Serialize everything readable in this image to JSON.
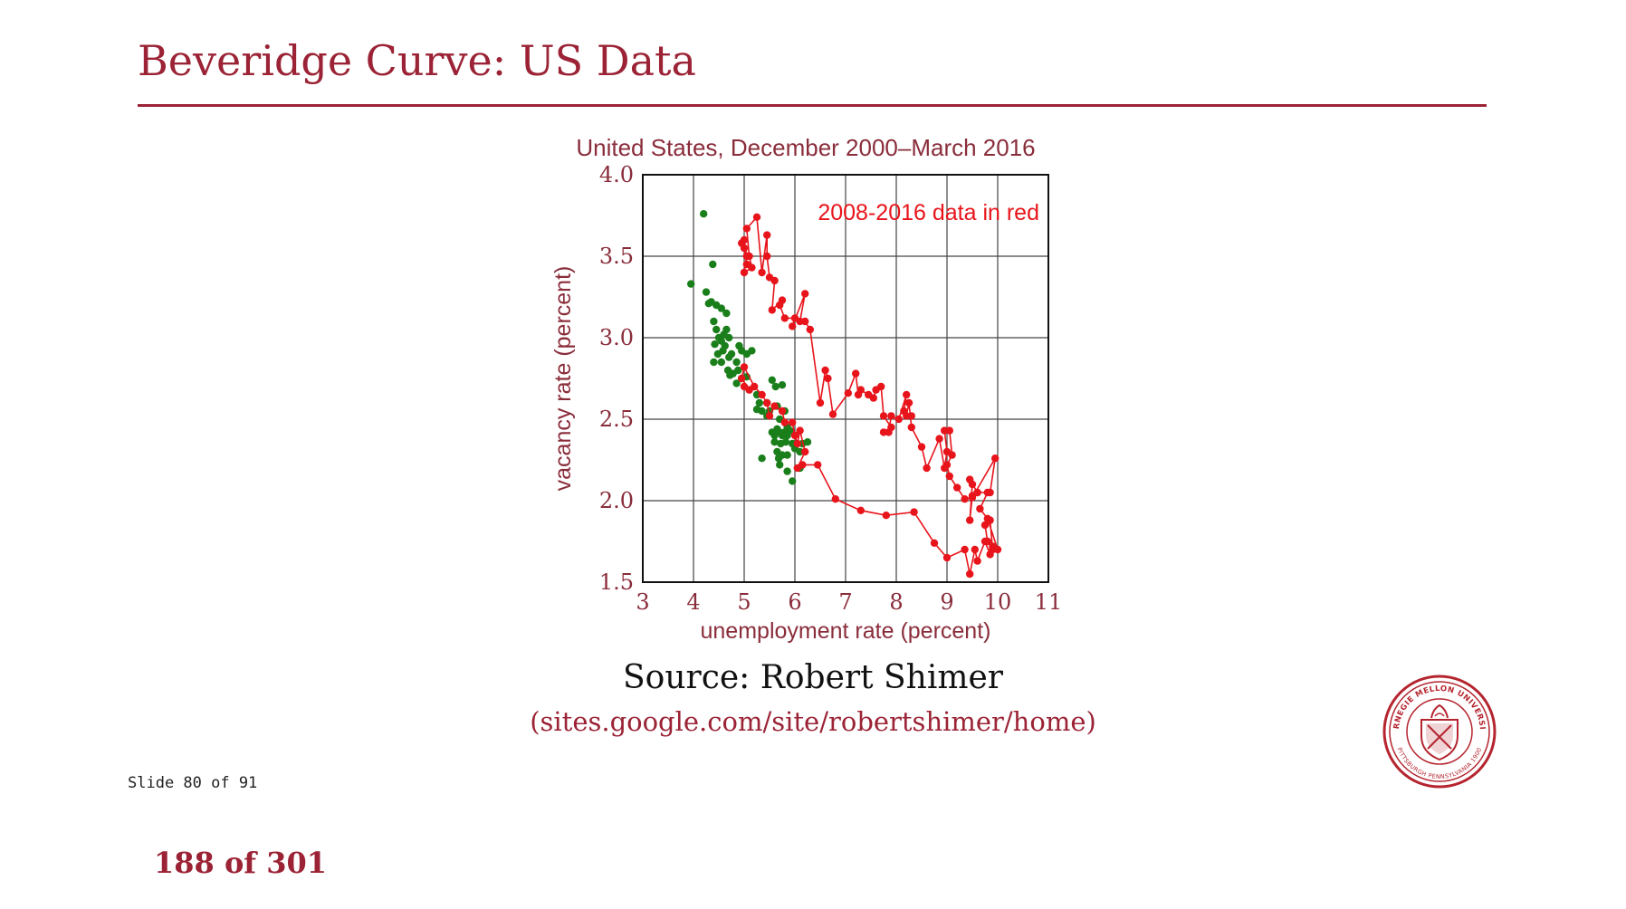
{
  "slide": {
    "title": "Beveridge Curve: US Data",
    "source_line": "Source: Robert Shimer",
    "source_link": "(sites.google.com/site/robertshimer/home)",
    "slide_counter": "Slide 80 of 91",
    "page_counter": "188 of 301",
    "accent_color": "#9b2335",
    "seal_text_top": "CARNEGIE MELLON UNIVERSITY",
    "seal_text_bottom": "PITTSBURGH PENNSYLVANIA 1900"
  },
  "chart_data": {
    "type": "scatter",
    "title": "United States, December 2000–March 2016",
    "xlabel": "unemployment rate (percent)",
    "ylabel": "vacancy rate (percent)",
    "xlim": [
      3,
      11
    ],
    "ylim": [
      1.5,
      4.0
    ],
    "xticks": [
      "3",
      "4",
      "5",
      "6",
      "7",
      "8",
      "9",
      "10",
      "11"
    ],
    "yticks": [
      "1.5",
      "2.0",
      "2.5",
      "3.0",
      "3.5",
      "4.0"
    ],
    "grid": true,
    "annotation": "2008-2016 data in red",
    "annotation_color": "#e8141b",
    "series": [
      {
        "color": "#1a7f1a",
        "style": "points",
        "points": [
          [
            3.95,
            3.33
          ],
          [
            4.2,
            3.76
          ],
          [
            4.25,
            3.28
          ],
          [
            4.3,
            3.21
          ],
          [
            4.35,
            3.22
          ],
          [
            4.38,
            3.45
          ],
          [
            4.45,
            3.2
          ],
          [
            4.55,
            3.18
          ],
          [
            4.65,
            3.15
          ],
          [
            4.4,
            3.1
          ],
          [
            4.45,
            3.05
          ],
          [
            4.5,
            3.0
          ],
          [
            4.55,
            2.98
          ],
          [
            4.6,
            3.02
          ],
          [
            4.65,
            3.05
          ],
          [
            4.7,
            3.0
          ],
          [
            4.42,
            2.96
          ],
          [
            4.48,
            2.9
          ],
          [
            4.58,
            2.92
          ],
          [
            4.62,
            2.95
          ],
          [
            4.75,
            2.9
          ],
          [
            4.4,
            2.85
          ],
          [
            4.55,
            2.85
          ],
          [
            4.7,
            2.88
          ],
          [
            4.85,
            2.85
          ],
          [
            4.9,
            2.95
          ],
          [
            4.95,
            2.92
          ],
          [
            5.05,
            2.9
          ],
          [
            5.15,
            2.92
          ],
          [
            4.68,
            2.8
          ],
          [
            4.72,
            2.77
          ],
          [
            4.78,
            2.78
          ],
          [
            4.88,
            2.8
          ],
          [
            4.95,
            2.75
          ],
          [
            5.05,
            2.76
          ],
          [
            4.85,
            2.72
          ],
          [
            5.1,
            2.68
          ],
          [
            5.25,
            2.65
          ],
          [
            5.3,
            2.6
          ],
          [
            5.25,
            2.56
          ],
          [
            5.35,
            2.55
          ],
          [
            5.45,
            2.6
          ],
          [
            5.45,
            2.52
          ],
          [
            5.5,
            2.55
          ],
          [
            5.55,
            2.74
          ],
          [
            5.62,
            2.7
          ],
          [
            5.75,
            2.71
          ],
          [
            5.65,
            2.58
          ],
          [
            5.7,
            2.5
          ],
          [
            5.8,
            2.55
          ],
          [
            5.85,
            2.45
          ],
          [
            5.55,
            2.42
          ],
          [
            5.6,
            2.4
          ],
          [
            5.65,
            2.44
          ],
          [
            5.7,
            2.42
          ],
          [
            5.75,
            2.4
          ],
          [
            5.8,
            2.42
          ],
          [
            5.85,
            2.4
          ],
          [
            5.9,
            2.43
          ],
          [
            5.6,
            2.36
          ],
          [
            5.72,
            2.35
          ],
          [
            5.82,
            2.36
          ],
          [
            5.95,
            2.35
          ],
          [
            5.65,
            2.3
          ],
          [
            5.75,
            2.28
          ],
          [
            5.68,
            2.26
          ],
          [
            5.85,
            2.28
          ],
          [
            6.0,
            2.32
          ],
          [
            6.1,
            2.3
          ],
          [
            6.15,
            2.35
          ],
          [
            6.25,
            2.36
          ],
          [
            5.35,
            2.26
          ],
          [
            5.7,
            2.22
          ],
          [
            5.85,
            2.18
          ],
          [
            5.95,
            2.12
          ],
          [
            6.1,
            2.2
          ]
        ]
      },
      {
        "color": "#e8141b",
        "style": "line",
        "points": [
          [
            5.0,
            2.7
          ],
          [
            5.1,
            2.68
          ],
          [
            4.95,
            2.75
          ],
          [
            5.0,
            2.82
          ],
          [
            5.2,
            2.7
          ],
          [
            5.35,
            2.65
          ],
          [
            5.45,
            2.6
          ],
          [
            5.5,
            2.52
          ],
          [
            5.6,
            2.58
          ],
          [
            5.75,
            2.55
          ],
          [
            5.8,
            2.48
          ],
          [
            5.95,
            2.48
          ],
          [
            6.0,
            2.4
          ],
          [
            6.05,
            2.35
          ],
          [
            6.1,
            2.43
          ],
          [
            6.2,
            2.3
          ],
          [
            6.05,
            2.2
          ],
          [
            6.15,
            2.22
          ],
          [
            6.45,
            2.22
          ],
          [
            6.8,
            2.01
          ],
          [
            7.3,
            1.94
          ],
          [
            7.8,
            1.91
          ],
          [
            8.35,
            1.93
          ],
          [
            8.75,
            1.74
          ],
          [
            9.0,
            1.65
          ],
          [
            9.35,
            1.7
          ],
          [
            9.45,
            1.55
          ],
          [
            9.55,
            1.7
          ],
          [
            9.6,
            1.63
          ],
          [
            9.75,
            1.75
          ],
          [
            9.85,
            1.67
          ],
          [
            9.9,
            1.7
          ],
          [
            9.85,
            1.88
          ],
          [
            9.75,
            1.85
          ],
          [
            9.8,
            1.75
          ],
          [
            9.9,
            1.72
          ],
          [
            10.0,
            1.7
          ],
          [
            9.8,
            1.89
          ],
          [
            9.65,
            1.95
          ],
          [
            9.8,
            2.05
          ],
          [
            9.6,
            2.05
          ],
          [
            9.5,
            2.03
          ],
          [
            9.45,
            1.88
          ],
          [
            9.5,
            2.1
          ],
          [
            9.45,
            2.13
          ],
          [
            9.6,
            2.05
          ],
          [
            9.85,
            2.05
          ],
          [
            9.95,
            2.26
          ],
          [
            9.5,
            2.02
          ],
          [
            9.35,
            2.01
          ],
          [
            9.2,
            2.08
          ],
          [
            9.05,
            2.15
          ],
          [
            9.0,
            2.22
          ],
          [
            9.1,
            2.28
          ],
          [
            9.05,
            2.43
          ],
          [
            8.95,
            2.43
          ],
          [
            9.0,
            2.3
          ],
          [
            8.95,
            2.2
          ],
          [
            8.85,
            2.38
          ],
          [
            8.6,
            2.2
          ],
          [
            8.5,
            2.33
          ],
          [
            8.3,
            2.45
          ],
          [
            8.25,
            2.6
          ],
          [
            8.2,
            2.52
          ],
          [
            8.3,
            2.52
          ],
          [
            8.15,
            2.55
          ],
          [
            8.2,
            2.65
          ],
          [
            8.05,
            2.5
          ],
          [
            7.9,
            2.52
          ],
          [
            7.85,
            2.42
          ],
          [
            7.75,
            2.42
          ],
          [
            7.9,
            2.45
          ],
          [
            7.75,
            2.52
          ],
          [
            7.7,
            2.7
          ],
          [
            7.6,
            2.68
          ],
          [
            7.55,
            2.63
          ],
          [
            7.45,
            2.65
          ],
          [
            7.3,
            2.68
          ],
          [
            7.25,
            2.65
          ],
          [
            7.2,
            2.78
          ],
          [
            7.05,
            2.66
          ],
          [
            6.75,
            2.53
          ],
          [
            6.65,
            2.75
          ],
          [
            6.6,
            2.8
          ],
          [
            6.5,
            2.6
          ],
          [
            6.3,
            3.05
          ],
          [
            6.2,
            3.1
          ],
          [
            6.1,
            3.1
          ],
          [
            6.2,
            3.27
          ],
          [
            5.95,
            3.07
          ],
          [
            6.0,
            3.12
          ],
          [
            5.8,
            3.12
          ],
          [
            5.7,
            3.2
          ],
          [
            5.75,
            3.23
          ],
          [
            5.55,
            3.17
          ],
          [
            5.6,
            3.35
          ],
          [
            5.5,
            3.37
          ],
          [
            5.45,
            3.5
          ],
          [
            5.45,
            3.63
          ],
          [
            5.35,
            3.4
          ],
          [
            5.25,
            3.74
          ],
          [
            5.05,
            3.67
          ],
          [
            5.1,
            3.5
          ],
          [
            5.15,
            3.43
          ],
          [
            5.0,
            3.4
          ],
          [
            5.05,
            3.5
          ],
          [
            5.0,
            3.6
          ],
          [
            5.05,
            3.45
          ],
          [
            5.0,
            3.55
          ],
          [
            4.95,
            3.58
          ]
        ]
      }
    ]
  }
}
